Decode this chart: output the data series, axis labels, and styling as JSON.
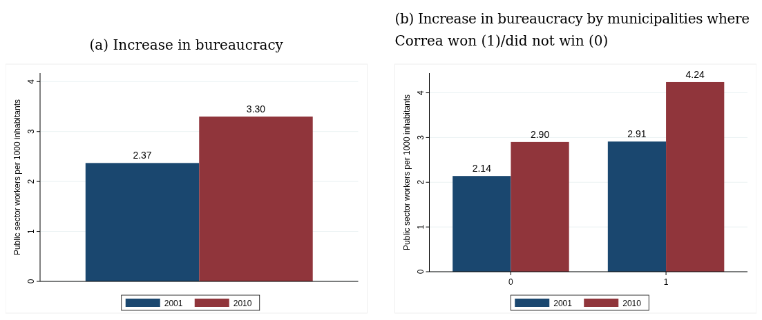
{
  "chart_data": [
    {
      "type": "bar",
      "title": "(a) Increase in bureaucracy",
      "ylabel": "Public sector workers per 1000 inhabitants",
      "categories": [
        null
      ],
      "series": [
        {
          "name": "2001",
          "color": "#1a476f",
          "values": [
            2.37
          ]
        },
        {
          "name": "2010",
          "color": "#90353b",
          "values": [
            3.3
          ]
        }
      ],
      "ylim": [
        0,
        4.17
      ],
      "yticks": [
        0,
        1,
        2,
        3,
        4
      ],
      "grid": "y",
      "legend": "bottom",
      "value_labels": [
        [
          "2.37"
        ],
        [
          "3.30"
        ]
      ]
    },
    {
      "type": "bar",
      "title": "(b) Increase in bureaucracy by municipalities where Correa won (1)/did not win (0)",
      "ylabel": "Public sector workers per 1000 inhabitants",
      "categories": [
        "0",
        "1"
      ],
      "series": [
        {
          "name": "2001",
          "color": "#1a476f",
          "values": [
            2.14,
            2.91
          ]
        },
        {
          "name": "2010",
          "color": "#90353b",
          "values": [
            2.9,
            4.24
          ]
        }
      ],
      "ylim": [
        0,
        4.44
      ],
      "yticks": [
        0,
        1,
        2,
        3,
        4
      ],
      "grid": "y",
      "legend": "bottom",
      "value_labels": [
        [
          "2.14",
          "2.91"
        ],
        [
          "2.90",
          "4.24"
        ]
      ]
    }
  ]
}
